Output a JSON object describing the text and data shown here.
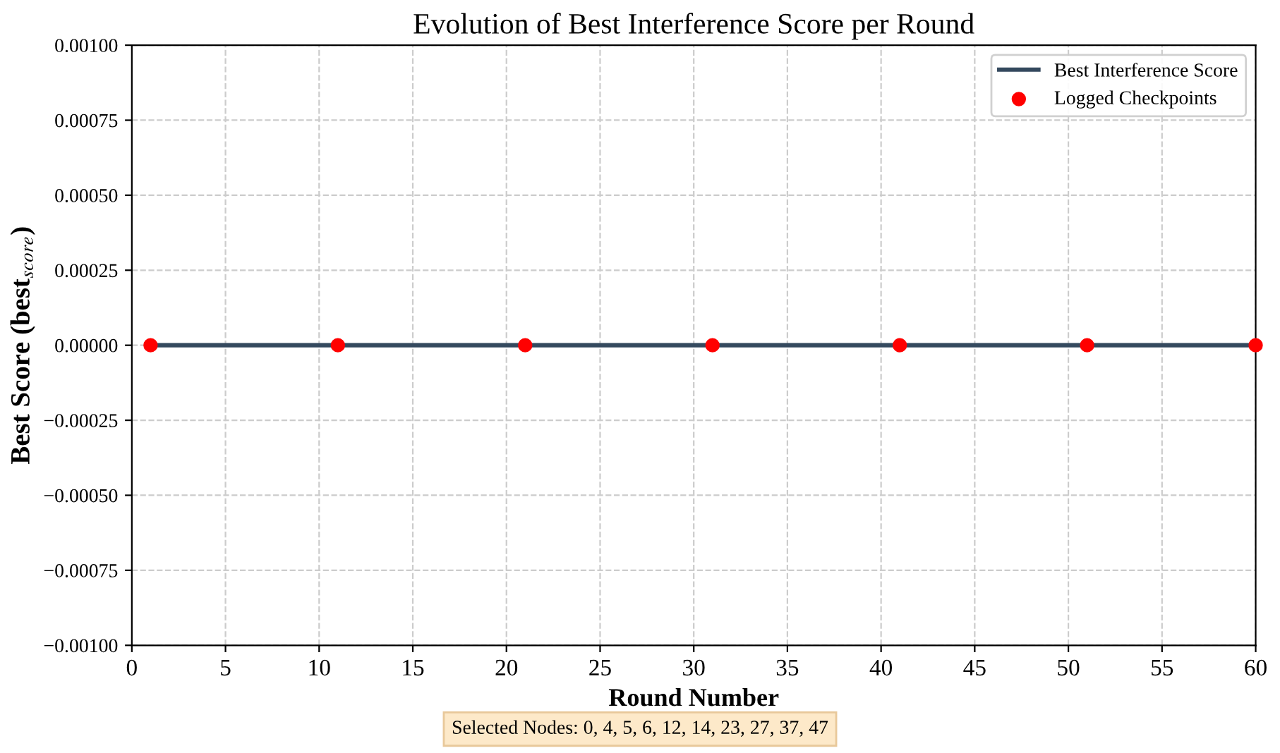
{
  "chart_data": {
    "type": "line",
    "title": "Evolution of Best Interference Score per Round",
    "xlabel": "Round Number",
    "ylabel": "Best Score (best$_{score}$)",
    "series": [
      {
        "name": "Best Interference Score",
        "color": "#34495e",
        "x": [
          1,
          60
        ],
        "values": [
          0,
          0
        ]
      },
      {
        "name": "Logged Checkpoints",
        "type": "scatter",
        "marker": "circle",
        "color": "#ff0000",
        "x": [
          1,
          11,
          21,
          31,
          41,
          51,
          60
        ],
        "values": [
          0,
          0,
          0,
          0,
          0,
          0,
          0
        ]
      }
    ],
    "xlim": [
      0,
      60
    ],
    "xticks": [
      0,
      5,
      10,
      15,
      20,
      25,
      30,
      35,
      40,
      45,
      50,
      55,
      60
    ],
    "ylim": [
      -0.001,
      0.001
    ],
    "yticks": [
      {
        "value": -0.001,
        "label": "−0.00100"
      },
      {
        "value": -0.00075,
        "label": "−0.00075"
      },
      {
        "value": -0.0005,
        "label": "−0.00050"
      },
      {
        "value": -0.00025,
        "label": "−0.00025"
      },
      {
        "value": 0,
        "label": "0.00000"
      },
      {
        "value": 0.00025,
        "label": "0.00025"
      },
      {
        "value": 0.0005,
        "label": "0.00050"
      },
      {
        "value": 0.00075,
        "label": "0.00075"
      },
      {
        "value": 0.001,
        "label": "0.00100"
      }
    ],
    "grid": true,
    "legend": "top right",
    "annotations": [
      "Selected Nodes: 0, 4, 5, 6, 12, 14, 23, 27, 37, 47"
    ]
  }
}
